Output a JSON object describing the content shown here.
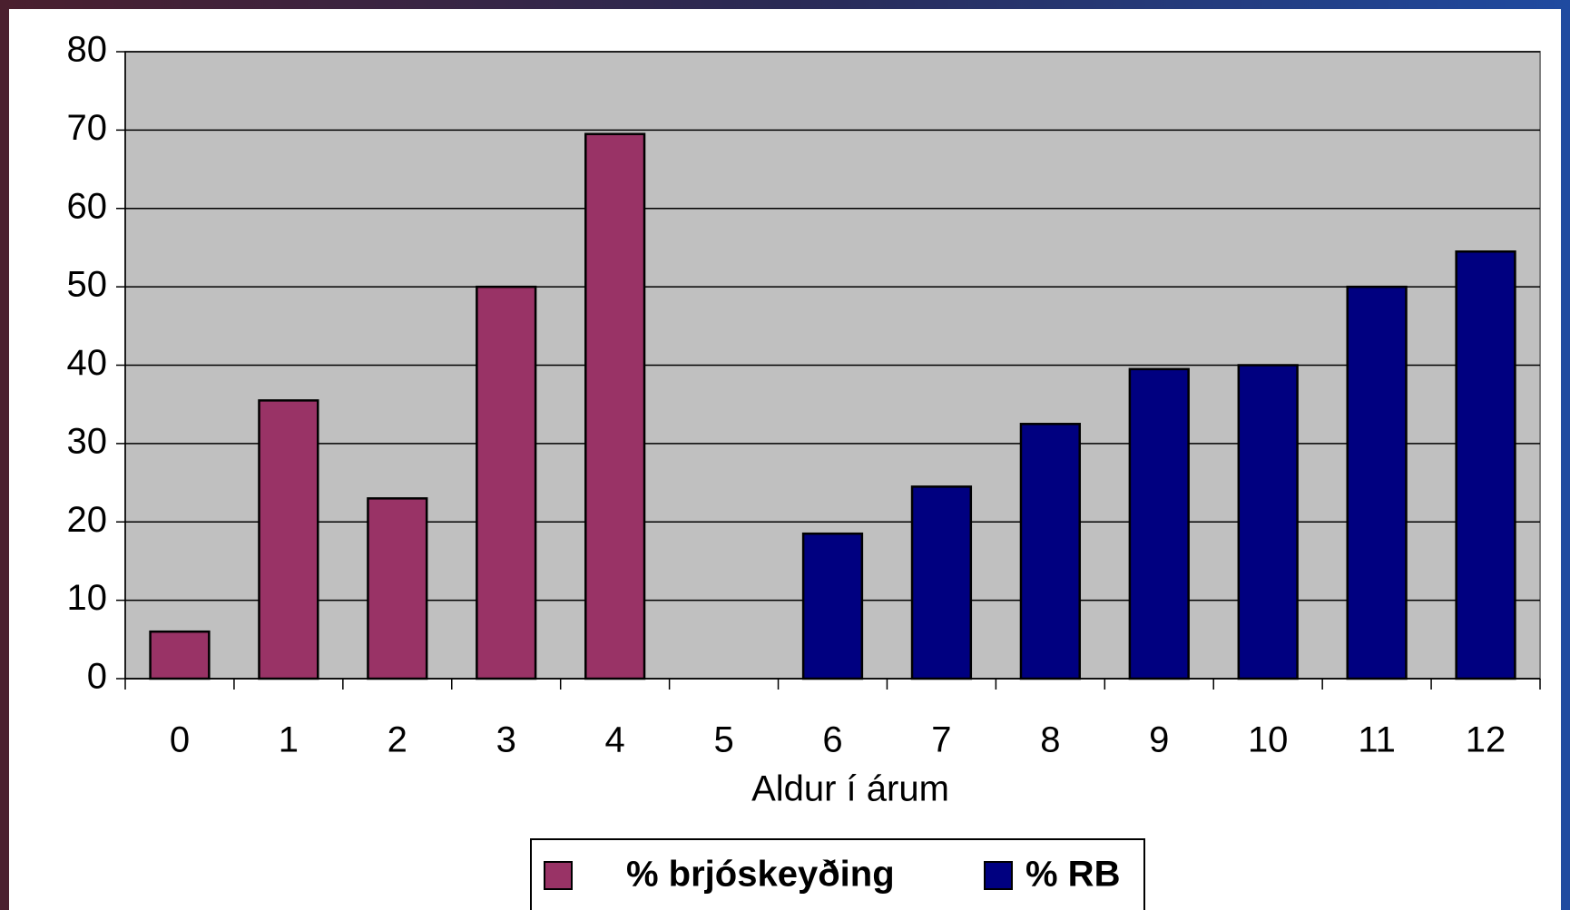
{
  "chart_data": {
    "type": "bar",
    "x_label": "Aldur í árum",
    "categories": [
      "0",
      "1",
      "2",
      "3",
      "4",
      "5",
      "6",
      "7",
      "8",
      "9",
      "10",
      "11",
      "12"
    ],
    "series": [
      {
        "name": "% brjóskeyðing",
        "color": "#993366",
        "values": [
          6,
          35.5,
          23,
          50,
          69.5,
          null,
          null,
          null,
          null,
          null,
          null,
          null,
          null
        ]
      },
      {
        "name": "% RB",
        "color": "#000080",
        "values": [
          null,
          null,
          null,
          null,
          null,
          null,
          18.5,
          24.5,
          32.5,
          39.5,
          40,
          50,
          54.5
        ]
      }
    ],
    "ylim": [
      0,
      80
    ],
    "yticks": [
      0,
      10,
      20,
      30,
      40,
      50,
      60,
      70,
      80
    ],
    "grid": true,
    "legend": "bottom"
  }
}
